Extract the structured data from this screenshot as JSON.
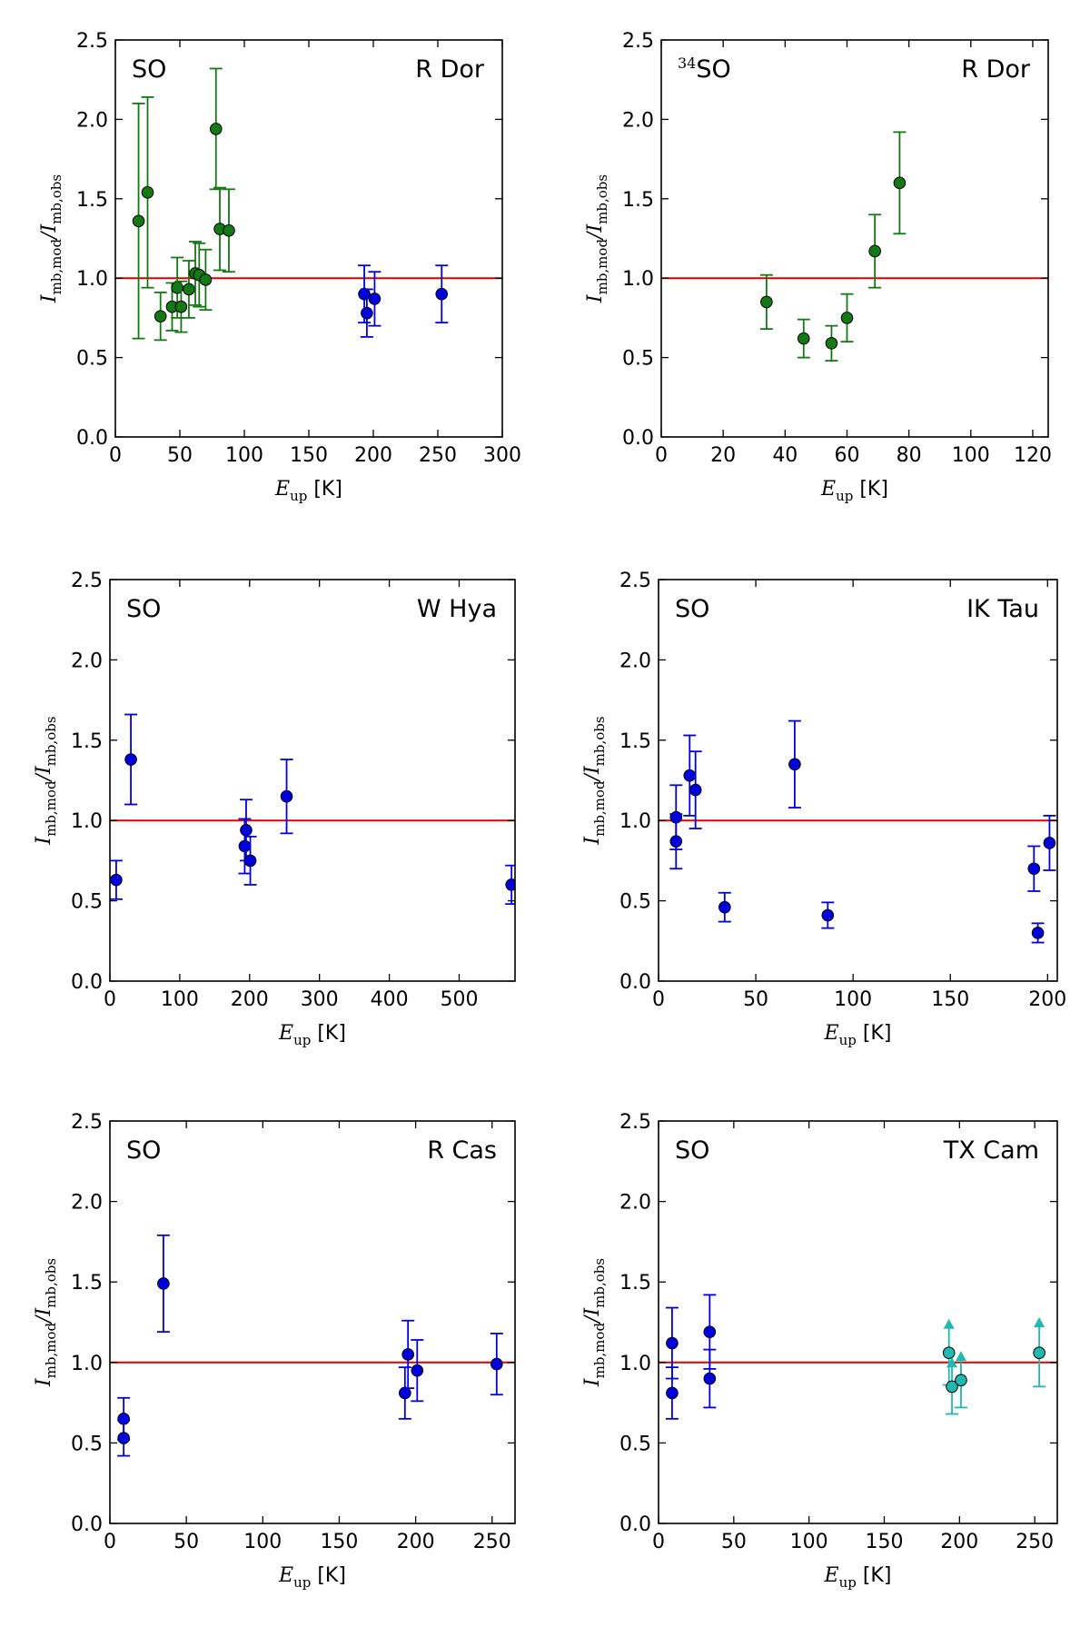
{
  "figure": {
    "ylabel_main": "I",
    "ylabel_sub1": "mb,mod",
    "ylabel_slash": "/",
    "ylabel_sub2": "mb,obs",
    "xlabel_main": "E",
    "xlabel_sub": "up",
    "xlabel_unit": " [K]",
    "colors": {
      "green": "#147814",
      "blue": "#0000dd",
      "cyan": "#20b8b0",
      "reference_line": "#dd0000",
      "axes": "#000000"
    }
  },
  "chart_data": [
    {
      "type": "scatter",
      "molecule": "SO",
      "molecule_sup": "",
      "star": "R Dor",
      "xlim": [
        0,
        300
      ],
      "ylim": [
        0.0,
        2.5
      ],
      "xticks": [
        "0",
        "50",
        "100",
        "150",
        "200",
        "250",
        "300"
      ],
      "yticks": [
        "0.0",
        "0.5",
        "1.0",
        "1.5",
        "2.0",
        "2.5"
      ],
      "reference_y": 1.0,
      "series": [
        {
          "name": "green",
          "color": "green",
          "points": [
            {
              "x": 18,
              "y": 1.36,
              "err": 0.74
            },
            {
              "x": 25,
              "y": 1.54,
              "err": 0.6
            },
            {
              "x": 35,
              "y": 0.76,
              "err": 0.15
            },
            {
              "x": 44,
              "y": 0.82,
              "err": 0.15
            },
            {
              "x": 48,
              "y": 0.94,
              "err": 0.19
            },
            {
              "x": 51,
              "y": 0.82,
              "err": 0.16
            },
            {
              "x": 57,
              "y": 0.93,
              "err": 0.18
            },
            {
              "x": 62,
              "y": 1.03,
              "err": 0.2
            },
            {
              "x": 65,
              "y": 1.02,
              "err": 0.2
            },
            {
              "x": 70,
              "y": 0.99,
              "err": 0.19
            },
            {
              "x": 78,
              "y": 1.94,
              "err": 0.38
            },
            {
              "x": 81,
              "y": 1.31,
              "err": 0.26
            },
            {
              "x": 88,
              "y": 1.3,
              "err": 0.26
            }
          ]
        },
        {
          "name": "blue",
          "color": "blue",
          "points": [
            {
              "x": 193,
              "y": 0.9,
              "err": 0.18
            },
            {
              "x": 195,
              "y": 0.78,
              "err": 0.15
            },
            {
              "x": 201,
              "y": 0.87,
              "err": 0.17
            },
            {
              "x": 253,
              "y": 0.9,
              "err": 0.18
            }
          ]
        }
      ]
    },
    {
      "type": "scatter",
      "molecule": "SO",
      "molecule_sup": "34",
      "star": "R Dor",
      "xlim": [
        0,
        125
      ],
      "ylim": [
        0.0,
        2.5
      ],
      "xticks": [
        "0",
        "20",
        "40",
        "60",
        "80",
        "100",
        "120"
      ],
      "yticks": [
        "0.0",
        "0.5",
        "1.0",
        "1.5",
        "2.0",
        "2.5"
      ],
      "reference_y": 1.0,
      "series": [
        {
          "name": "green",
          "color": "green",
          "points": [
            {
              "x": 34,
              "y": 0.85,
              "err": 0.17
            },
            {
              "x": 46,
              "y": 0.62,
              "err": 0.12
            },
            {
              "x": 55,
              "y": 0.59,
              "err": 0.11
            },
            {
              "x": 60,
              "y": 0.75,
              "err": 0.15
            },
            {
              "x": 69,
              "y": 1.17,
              "err": 0.23
            },
            {
              "x": 77,
              "y": 1.6,
              "err": 0.32
            }
          ]
        }
      ]
    },
    {
      "type": "scatter",
      "molecule": "SO",
      "molecule_sup": "",
      "star": "W Hya",
      "xlim": [
        0,
        580
      ],
      "ylim": [
        0.0,
        2.5
      ],
      "xticks": [
        "0",
        "100",
        "200",
        "300",
        "400",
        "500"
      ],
      "yticks": [
        "0.0",
        "0.5",
        "1.0",
        "1.5",
        "2.0",
        "2.5"
      ],
      "reference_y": 1.0,
      "series": [
        {
          "name": "blue",
          "color": "blue",
          "points": [
            {
              "x": 9,
              "y": 0.63,
              "err": 0.12
            },
            {
              "x": 30,
              "y": 1.38,
              "err": 0.28
            },
            {
              "x": 193,
              "y": 0.84,
              "err": 0.17
            },
            {
              "x": 195,
              "y": 0.94,
              "err": 0.19
            },
            {
              "x": 201,
              "y": 0.75,
              "err": 0.15
            },
            {
              "x": 253,
              "y": 1.15,
              "err": 0.23
            },
            {
              "x": 575,
              "y": 0.6,
              "err": 0.12
            }
          ]
        }
      ]
    },
    {
      "type": "scatter",
      "molecule": "SO",
      "molecule_sup": "",
      "star": "IK Tau",
      "xlim": [
        0,
        205
      ],
      "ylim": [
        0.0,
        2.5
      ],
      "xticks": [
        "0",
        "50",
        "100",
        "150",
        "200"
      ],
      "yticks": [
        "0.0",
        "0.5",
        "1.0",
        "1.5",
        "2.0",
        "2.5"
      ],
      "reference_y": 1.0,
      "series": [
        {
          "name": "blue",
          "color": "blue",
          "points": [
            {
              "x": 9,
              "y": 1.02,
              "err": 0.2
            },
            {
              "x": 9,
              "y": 0.87,
              "err": 0.17
            },
            {
              "x": 16,
              "y": 1.28,
              "err": 0.25
            },
            {
              "x": 19,
              "y": 1.19,
              "err": 0.24
            },
            {
              "x": 34,
              "y": 0.46,
              "err": 0.09
            },
            {
              "x": 70,
              "y": 1.35,
              "err": 0.27
            },
            {
              "x": 87,
              "y": 0.41,
              "err": 0.08
            },
            {
              "x": 193,
              "y": 0.7,
              "err": 0.14
            },
            {
              "x": 195,
              "y": 0.3,
              "err": 0.06
            },
            {
              "x": 201,
              "y": 0.86,
              "err": 0.17
            }
          ]
        }
      ]
    },
    {
      "type": "scatter",
      "molecule": "SO",
      "molecule_sup": "",
      "star": "R Cas",
      "xlim": [
        0,
        265
      ],
      "ylim": [
        0.0,
        2.5
      ],
      "xticks": [
        "0",
        "50",
        "100",
        "150",
        "200",
        "250"
      ],
      "yticks": [
        "0.0",
        "0.5",
        "1.0",
        "1.5",
        "2.0",
        "2.5"
      ],
      "reference_y": 1.0,
      "series": [
        {
          "name": "blue",
          "color": "blue",
          "points": [
            {
              "x": 9,
              "y": 0.65,
              "err": 0.13
            },
            {
              "x": 9,
              "y": 0.53,
              "err": 0.11
            },
            {
              "x": 35,
              "y": 1.49,
              "err": 0.3
            },
            {
              "x": 193,
              "y": 0.81,
              "err": 0.16
            },
            {
              "x": 195,
              "y": 1.05,
              "err": 0.21
            },
            {
              "x": 201,
              "y": 0.95,
              "err": 0.19
            },
            {
              "x": 253,
              "y": 0.99,
              "err": 0.19
            }
          ]
        }
      ]
    },
    {
      "type": "scatter",
      "molecule": "SO",
      "molecule_sup": "",
      "star": "TX Cam",
      "xlim": [
        0,
        265
      ],
      "ylim": [
        0.0,
        2.5
      ],
      "xticks": [
        "0",
        "50",
        "100",
        "150",
        "200",
        "250"
      ],
      "yticks": [
        "0.0",
        "0.5",
        "1.0",
        "1.5",
        "2.0",
        "2.5"
      ],
      "reference_y": 1.0,
      "series": [
        {
          "name": "blue",
          "color": "blue",
          "points": [
            {
              "x": 9,
              "y": 1.12,
              "err": 0.22
            },
            {
              "x": 9,
              "y": 0.81,
              "err": 0.16
            },
            {
              "x": 34,
              "y": 1.19,
              "err": 0.23
            },
            {
              "x": 34,
              "y": 0.9,
              "err": 0.18
            }
          ]
        },
        {
          "name": "cyan lower limits",
          "color": "cyan",
          "lower_limit": true,
          "points": [
            {
              "x": 193,
              "y": 1.06,
              "err": 0.2
            },
            {
              "x": 195,
              "y": 0.85,
              "err": 0.17
            },
            {
              "x": 201,
              "y": 0.89,
              "err": 0.17
            },
            {
              "x": 253,
              "y": 1.06,
              "err": 0.21
            }
          ]
        }
      ]
    }
  ]
}
